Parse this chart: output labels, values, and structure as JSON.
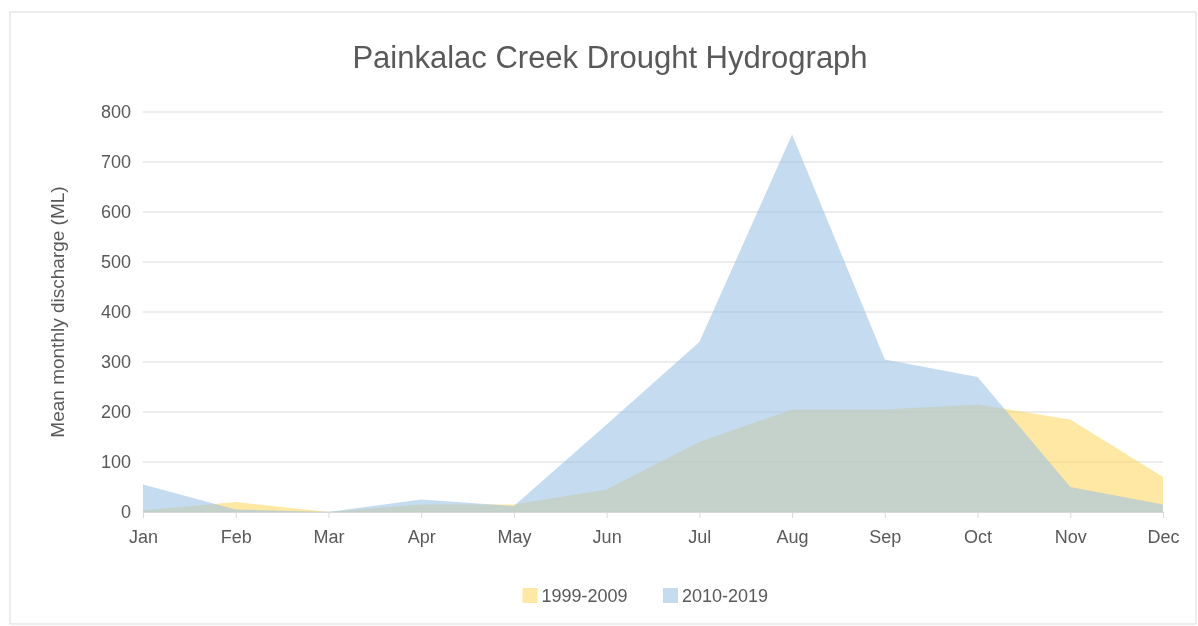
{
  "chart_data": {
    "type": "area",
    "title": "Painkalac Creek Drought Hydrograph",
    "ylabel": "Mean monthly discharge (ML)",
    "categories": [
      "Jan",
      "Feb",
      "Mar",
      "Apr",
      "May",
      "Jun",
      "Jul",
      "Aug",
      "Sep",
      "Oct",
      "Nov",
      "Dec"
    ],
    "series": [
      {
        "name": "1999-2009",
        "color": "#ffd966",
        "values": [
          3,
          20,
          0,
          15,
          15,
          45,
          140,
          205,
          205,
          215,
          185,
          70
        ]
      },
      {
        "name": "2010-2019",
        "color": "#9dc3e6",
        "values": [
          55,
          5,
          0,
          25,
          12,
          175,
          340,
          755,
          305,
          270,
          50,
          15
        ]
      }
    ],
    "ylim": [
      0,
      800
    ],
    "yticks": [
      0,
      100,
      200,
      300,
      400,
      500,
      600,
      700,
      800
    ],
    "grid": "y",
    "legend": "bottom"
  }
}
